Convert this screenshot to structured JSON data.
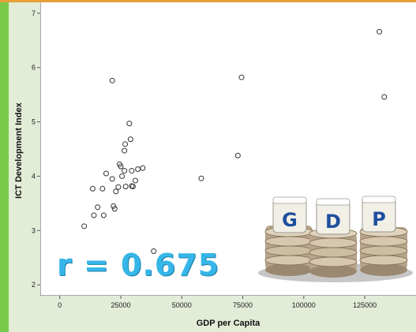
{
  "chart_data": {
    "type": "scatter",
    "xlabel": "GDP per Capita",
    "ylabel": "ICT Development Index",
    "xlim": [
      -8000,
      146000
    ],
    "ylim": [
      1.8,
      7.2
    ],
    "x_ticks": [
      "0",
      "25000",
      "50000",
      "75000",
      "100000",
      "125000"
    ],
    "y_ticks": [
      "2",
      "3",
      "4",
      "5",
      "6",
      "7"
    ],
    "grid": false,
    "points": [
      {
        "x": 10000,
        "y": 3.08
      },
      {
        "x": 14000,
        "y": 3.28
      },
      {
        "x": 15500,
        "y": 3.43
      },
      {
        "x": 18000,
        "y": 3.28
      },
      {
        "x": 13500,
        "y": 3.77
      },
      {
        "x": 17500,
        "y": 3.77
      },
      {
        "x": 19000,
        "y": 4.05
      },
      {
        "x": 21500,
        "y": 3.95
      },
      {
        "x": 22000,
        "y": 3.45
      },
      {
        "x": 22500,
        "y": 3.4
      },
      {
        "x": 23000,
        "y": 3.72
      },
      {
        "x": 24000,
        "y": 3.8
      },
      {
        "x": 24500,
        "y": 4.22
      },
      {
        "x": 25000,
        "y": 4.18
      },
      {
        "x": 25500,
        "y": 4.0
      },
      {
        "x": 26500,
        "y": 4.1
      },
      {
        "x": 26500,
        "y": 4.47
      },
      {
        "x": 26800,
        "y": 4.59
      },
      {
        "x": 27000,
        "y": 3.81
      },
      {
        "x": 28500,
        "y": 4.97
      },
      {
        "x": 29000,
        "y": 4.68
      },
      {
        "x": 29500,
        "y": 4.1
      },
      {
        "x": 29500,
        "y": 3.82
      },
      {
        "x": 30000,
        "y": 3.81
      },
      {
        "x": 31000,
        "y": 3.92
      },
      {
        "x": 32000,
        "y": 4.13
      },
      {
        "x": 34000,
        "y": 4.15
      },
      {
        "x": 21500,
        "y": 5.76
      },
      {
        "x": 38500,
        "y": 2.62
      },
      {
        "x": 58000,
        "y": 3.96
      },
      {
        "x": 73000,
        "y": 4.38
      },
      {
        "x": 74500,
        "y": 5.82
      },
      {
        "x": 131000,
        "y": 6.66
      },
      {
        "x": 133000,
        "y": 5.46
      }
    ],
    "annotation": "r = 0.675"
  },
  "coins_sign": {
    "letters": [
      "G",
      "D",
      "P"
    ]
  },
  "colors": {
    "frame": "#79c94a",
    "annotation": "#36b6e8"
  }
}
